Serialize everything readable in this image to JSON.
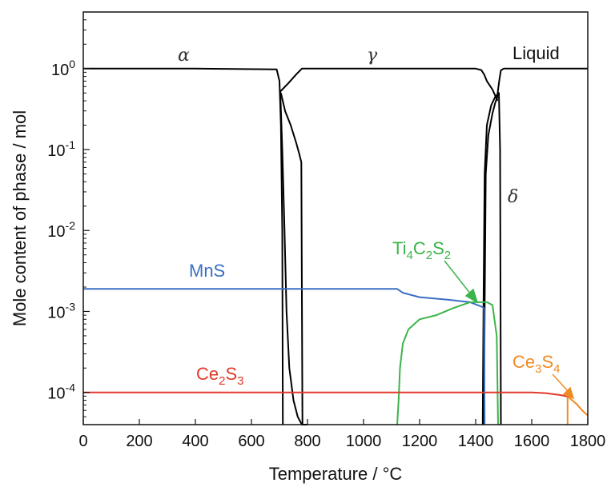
{
  "chart_data": {
    "type": "line",
    "xlabel": "Temperature / °C",
    "ylabel": "Mole content of phase / mol",
    "xlim": [
      0,
      1800
    ],
    "ylim": [
      4e-05,
      5
    ],
    "yscale": "log",
    "grid": false,
    "x_ticks": [
      "0",
      "200",
      "400",
      "600",
      "800",
      "1000",
      "1200",
      "1400",
      "1600",
      "1800"
    ],
    "y_ticks": [
      {
        "value": 1,
        "base": "10",
        "exp": "0"
      },
      {
        "value": 0.1,
        "base": "10",
        "exp": "-1"
      },
      {
        "value": 0.01,
        "base": "10",
        "exp": "-2"
      },
      {
        "value": 0.001,
        "base": "10",
        "exp": "-3"
      },
      {
        "value": 0.0001,
        "base": "10",
        "exp": "-4"
      }
    ],
    "annotations": {
      "alpha": "α",
      "gamma": "γ",
      "delta": "δ",
      "liquid": "Liquid",
      "mns": "MnS",
      "ti": {
        "a": "Ti",
        "b": "4",
        "c": "C",
        "d": "2",
        "e": "S",
        "f": "2"
      },
      "ce2s3": {
        "a": "Ce",
        "b": "2",
        "c": "S",
        "d": "3"
      },
      "ce3s4": {
        "a": "Ce",
        "b": "3",
        "c": "S",
        "d": "4"
      }
    },
    "colors": {
      "alpha": "#000000",
      "gamma": "#000000",
      "delta": "#000000",
      "liquid": "#000000",
      "MnS": "#3a6fc4",
      "Ti4C2S2": "#3cb44b",
      "Ce2S3": "#e0392b",
      "Ce3S4": "#f08a24"
    },
    "series": [
      {
        "key": "alpha",
        "x": [
          0,
          400,
          690,
          700,
          705,
          710,
          712
        ],
        "y": [
          1.0,
          1.0,
          0.98,
          0.7,
          0.2,
          0.01,
          4e-05
        ]
      },
      {
        "key": "alpha",
        "x": [
          705,
          720,
          740,
          760,
          770,
          778,
          782
        ],
        "y": [
          0.5,
          0.3,
          0.2,
          0.12,
          0.09,
          0.07,
          4e-05
        ]
      },
      {
        "key": "gamma",
        "x": [
          703,
          730,
          760,
          780,
          900,
          1400,
          1420,
          1430,
          1440,
          1460,
          1478
        ],
        "y": [
          0.52,
          0.65,
          0.85,
          1.0,
          1.0,
          1.0,
          0.96,
          0.85,
          0.7,
          0.55,
          0.4
        ]
      },
      {
        "key": "gamma",
        "x": [
          703,
          710,
          718,
          725,
          735,
          750,
          765,
          780,
          790,
          800
        ],
        "y": [
          0.52,
          0.1,
          0.01,
          0.001,
          0.0002,
          8e-05,
          5e-05,
          4e-05,
          4e-05,
          4e-05
        ]
      },
      {
        "key": "gamma",
        "x": [
          1430,
          1432,
          1436,
          1445,
          1460,
          1470,
          1478
        ],
        "y": [
          4e-05,
          0.001,
          0.05,
          0.15,
          0.28,
          0.38,
          0.45
        ]
      },
      {
        "key": "delta",
        "x": [
          1425,
          1428,
          1432,
          1440,
          1455,
          1470,
          1483,
          1487,
          1490
        ],
        "y": [
          4e-05,
          0.0012,
          0.05,
          0.2,
          0.35,
          0.45,
          0.5,
          0.1,
          4e-05
        ]
      },
      {
        "key": "liquid",
        "x": [
          1475,
          1480,
          1485,
          1490,
          1500,
          1800
        ],
        "y": [
          0.4,
          0.55,
          0.75,
          0.95,
          1.0,
          1.0
        ]
      },
      {
        "key": "MnS",
        "x": [
          0,
          1120,
          1140,
          1200,
          1300,
          1380,
          1420,
          1430,
          1432
        ],
        "y": [
          0.0019,
          0.0019,
          0.0017,
          0.0015,
          0.0014,
          0.0013,
          0.00115,
          0.0011,
          4e-05
        ]
      },
      {
        "key": "Ti4C2S2",
        "x": [
          1120,
          1125,
          1130,
          1140,
          1160,
          1200,
          1260,
          1320,
          1380,
          1420,
          1440,
          1460,
          1475,
          1480
        ],
        "y": [
          4e-05,
          8e-05,
          0.0002,
          0.0004,
          0.0006,
          0.0008,
          0.0009,
          0.0011,
          0.0013,
          0.0013,
          0.0013,
          0.0012,
          0.0005,
          4e-05
        ]
      },
      {
        "key": "Ce2S3",
        "x": [
          0,
          1200,
          1600,
          1650,
          1700,
          1720,
          1730
        ],
        "y": [
          0.0001,
          0.0001,
          0.0001,
          9.8e-05,
          9.3e-05,
          9e-05,
          8.8e-05
        ]
      },
      {
        "key": "Ce3S4",
        "x": [
          1730,
          1740,
          1760,
          1780,
          1800
        ],
        "y": [
          8.8e-05,
          8.2e-05,
          7.2e-05,
          6e-05,
          5.2e-05
        ]
      },
      {
        "key": "Ce3S4",
        "x": [
          1728,
          1728
        ],
        "y": [
          4e-05,
          8.8e-05
        ]
      }
    ]
  }
}
